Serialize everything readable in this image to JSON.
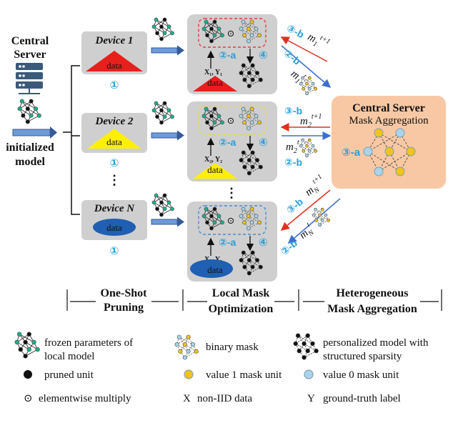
{
  "left": {
    "central_server": [
      "Central",
      "Server"
    ],
    "initialized_model": [
      "initialized",
      "model"
    ]
  },
  "devices": [
    {
      "label": "Device 1",
      "data": "data",
      "step": "①"
    },
    {
      "label": "Device 2",
      "data": "data",
      "step": "①"
    },
    {
      "label": "Device N",
      "data": "data",
      "step": "①"
    }
  ],
  "ellipsis": "⋮",
  "local": {
    "step_2a": "②-a",
    "step_4": "④",
    "multiply": "⊙",
    "data": "data",
    "xy": [
      "X₁, Y₁",
      "X₂, Y₂",
      "X₃, Y₃"
    ]
  },
  "comm": {
    "step_3b": "③-b",
    "step_2b": "②-b",
    "m1_next": "m",
    "labels": [
      {
        "top": "③-b",
        "top_math": "m1t+1",
        "bottom": "②-b",
        "bottom_math": "m1t"
      },
      {
        "top": "③-b",
        "top_math": "m2t+1",
        "bottom": "②-b",
        "bottom_math": "m2t"
      },
      {
        "top": "③-b",
        "top_math": "mNt+1",
        "bottom": "②-b",
        "bottom_math": "mNt"
      }
    ]
  },
  "server_box": {
    "title": "Central Server",
    "subtitle": "Mask Aggregation",
    "step": "③-a"
  },
  "phases": [
    {
      "line1": "One-Shot",
      "line2": "Pruning"
    },
    {
      "line1": "Local Mask",
      "line2": "Optimization"
    },
    {
      "line1": "Heterogeneous",
      "line2": "Mask Aggregation"
    }
  ],
  "legend": {
    "frozen": [
      "frozen parameters of",
      "local model"
    ],
    "binary_mask": "binary mask",
    "personalized": [
      "personalized model with",
      "structured sparsity"
    ],
    "pruned_unit": "pruned unit",
    "value1": "value 1 mask unit",
    "value0": "value 0 mask unit",
    "multiply_symbol": "⊙",
    "multiply": "elementwise multiply",
    "x_symbol": "X",
    "x_text": "non-IID data",
    "y_symbol": "Y",
    "y_text": "ground-truth label"
  },
  "colors": {
    "teal": "#1fae8c",
    "gold": "#f0c419",
    "lightblue": "#a9d4ea",
    "red": "#e8201c",
    "yellow": "#ffef00",
    "navy": "#1f5fb4",
    "orange_box": "#f8c8a4",
    "gray_box": "#cfcfcf",
    "accent_blue": "#2a9fd6"
  }
}
